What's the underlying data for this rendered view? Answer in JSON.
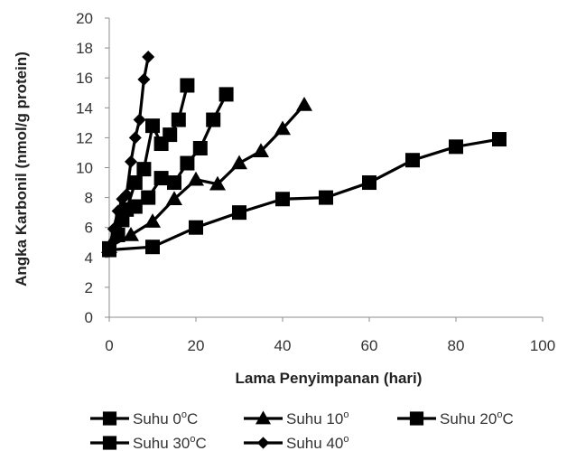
{
  "chart_data": {
    "type": "line",
    "title": "",
    "xlabel": "Lama Penyimpanan (hari)",
    "ylabel": "Angka Karbonil (nmol/g protein)",
    "xlim": [
      0,
      100
    ],
    "ylim": [
      0,
      20
    ],
    "xticks": [
      0,
      20,
      40,
      60,
      80,
      100
    ],
    "yticks": [
      0,
      2,
      4,
      6,
      8,
      10,
      12,
      14,
      16,
      18,
      20
    ],
    "grid": false,
    "legend_position": "bottom",
    "series": [
      {
        "name": "Suhu 0",
        "name_sup": "o",
        "name_suffix": "C",
        "marker": "square",
        "color": "#000000",
        "x": [
          0,
          10,
          20,
          30,
          40,
          50,
          60,
          70,
          80,
          90
        ],
        "y": [
          4.5,
          4.7,
          6.0,
          7.0,
          7.9,
          8.0,
          9.0,
          10.5,
          11.4,
          11.9
        ]
      },
      {
        "name": "Suhu 10",
        "name_sup": "o",
        "name_suffix": "",
        "marker": "triangle",
        "color": "#000000",
        "x": [
          0,
          5,
          10,
          15,
          20,
          25,
          30,
          35,
          40,
          45
        ],
        "y": [
          4.7,
          5.5,
          6.4,
          7.9,
          9.2,
          8.9,
          10.3,
          11.1,
          12.6,
          14.2
        ]
      },
      {
        "name": "Suhu 20",
        "name_sup": "o",
        "name_suffix": "C",
        "marker": "square",
        "color": "#000000",
        "x": [
          0,
          3,
          6,
          9,
          12,
          15,
          18,
          21,
          24,
          27
        ],
        "y": [
          4.6,
          6.5,
          7.4,
          8.0,
          9.3,
          9.0,
          10.3,
          11.3,
          13.2,
          14.9
        ]
      },
      {
        "name": "Suhu 30",
        "name_sup": "o",
        "name_suffix": "C",
        "marker": "square",
        "color": "#000000",
        "x": [
          0,
          2,
          4,
          6,
          8,
          10,
          12,
          14,
          16,
          18
        ],
        "y": [
          4.5,
          5.5,
          7.2,
          9.0,
          9.9,
          12.8,
          11.6,
          12.2,
          13.2,
          15.5
        ]
      },
      {
        "name": "Suhu 40",
        "name_sup": "o",
        "name_suffix": "",
        "marker": "diamond",
        "color": "#000000",
        "x": [
          0,
          1,
          2,
          3,
          4,
          5,
          6,
          7,
          8,
          9
        ],
        "y": [
          4.7,
          5.9,
          7.1,
          7.9,
          8.2,
          10.4,
          12.0,
          13.2,
          15.9,
          17.4
        ]
      }
    ]
  }
}
